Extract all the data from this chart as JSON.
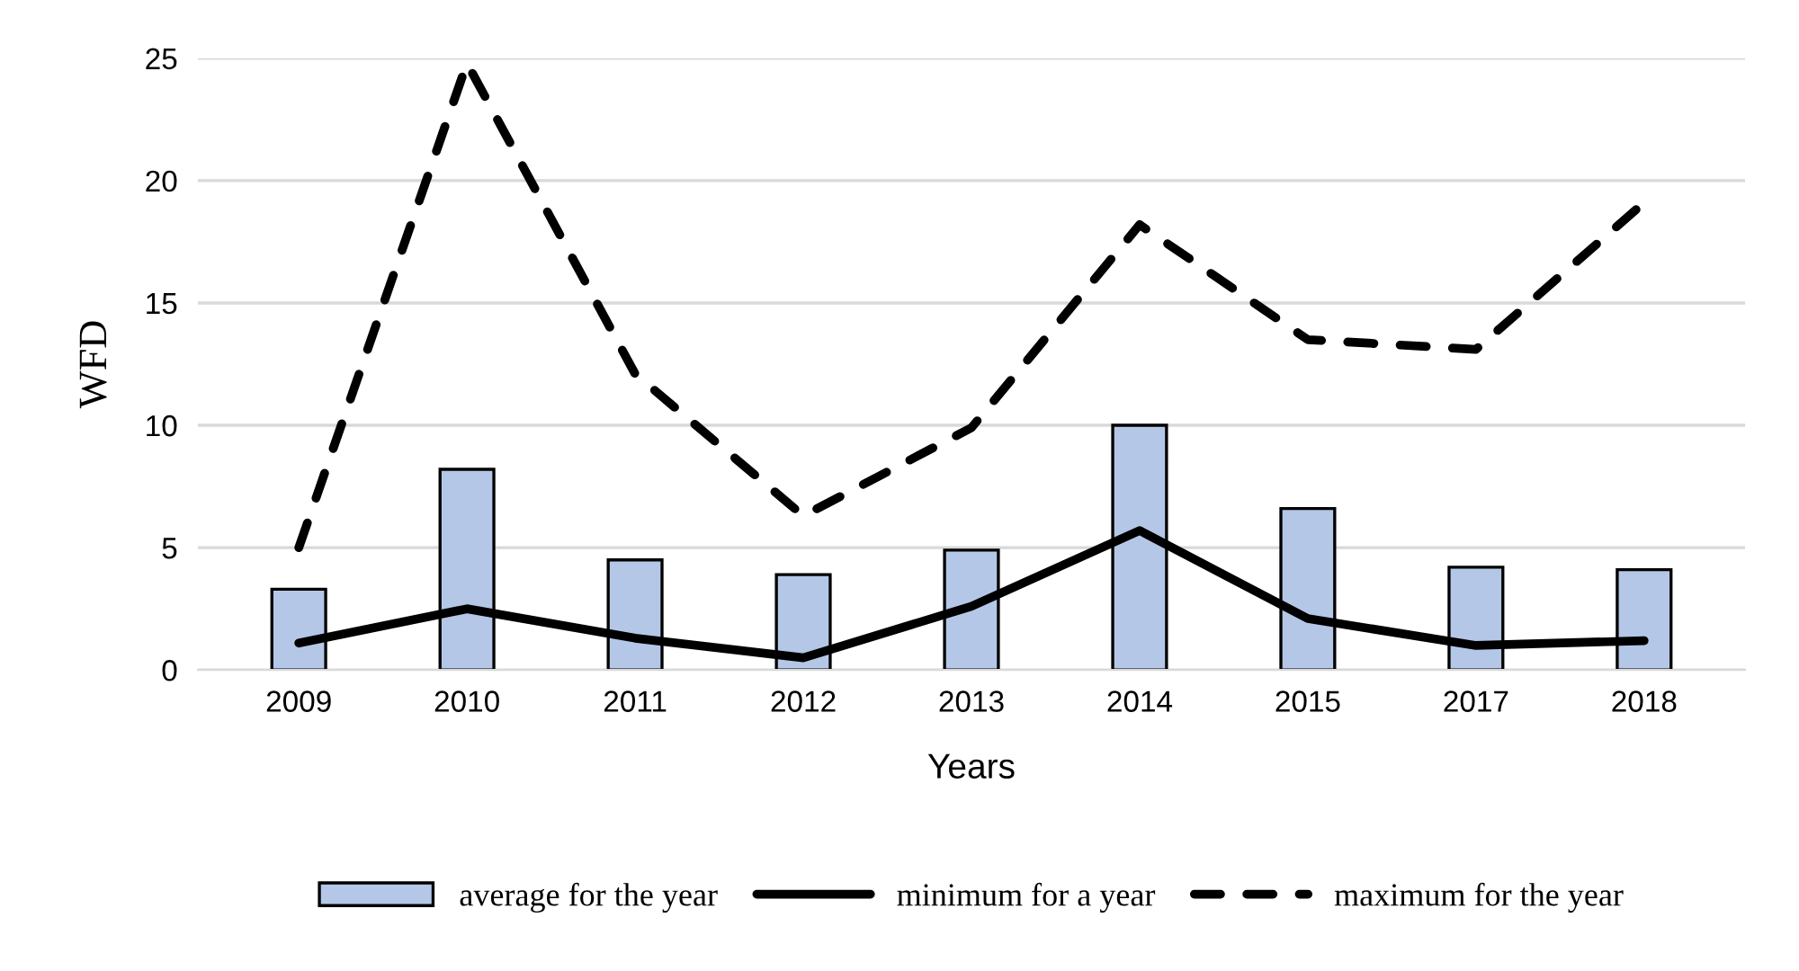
{
  "chart_data": {
    "type": "bar",
    "xlabel": "Years",
    "ylabel": "WFD",
    "categories": [
      "2009",
      "2010",
      "2011",
      "2012",
      "2013",
      "2014",
      "2015",
      "2017",
      "2018"
    ],
    "series": [
      {
        "name": "average for the year",
        "color": "#b4c7e7",
        "values": [
          3.3,
          8.2,
          4.5,
          3.9,
          4.9,
          10.0,
          6.6,
          4.2,
          4.1
        ]
      },
      {
        "name": "minimum for a year",
        "type": "line",
        "color": "#000000",
        "line_style": "solid",
        "values": [
          1.1,
          2.5,
          1.3,
          0.5,
          2.6,
          5.7,
          2.1,
          1.0,
          1.2
        ]
      },
      {
        "name": "maximum for the year",
        "type": "line",
        "color": "#000000",
        "line_style": "dashed",
        "values": [
          5.0,
          24.8,
          12.1,
          6.3,
          9.9,
          18.2,
          13.5,
          13.1,
          19.1
        ]
      }
    ],
    "ylim": [
      0,
      25
    ],
    "yticks": [
      0,
      5,
      10,
      15,
      20,
      25
    ],
    "grid": "y",
    "legend": "bottom"
  }
}
